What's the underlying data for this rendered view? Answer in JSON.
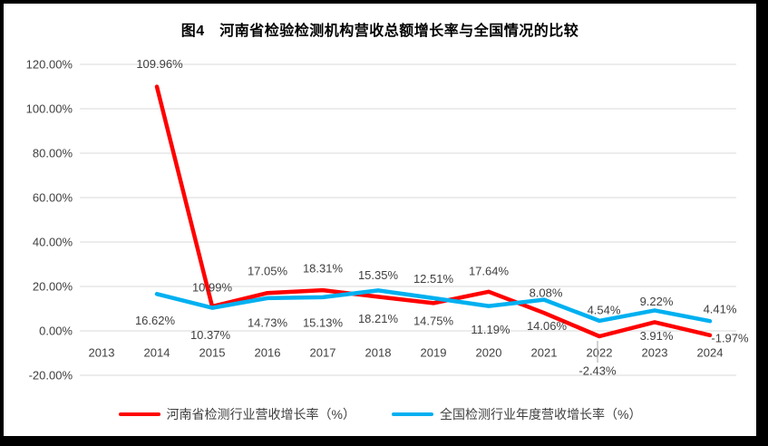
{
  "window": {
    "frame_color": "#000000",
    "background_color": "#ffffff",
    "gridline_color": "#d9d9d9",
    "axis_text_color": "#404040",
    "label_text_color": "#404040",
    "leader_line_color": "#a6a6a6"
  },
  "chart_data": {
    "type": "line",
    "title": "图4　河南省检验检测机构营收总额增长率与全国情况的比较",
    "categories": [
      "2013",
      "2014",
      "2015",
      "2016",
      "2017",
      "2018",
      "2019",
      "2020",
      "2021",
      "2022",
      "2023",
      "2024"
    ],
    "series": [
      {
        "name": "河南省检测行业营收增长率（%）",
        "color": "#ff0000",
        "values": [
          null,
          109.96,
          10.99,
          17.05,
          18.31,
          15.35,
          12.51,
          17.64,
          8.08,
          -2.43,
          3.91,
          -1.97
        ]
      },
      {
        "name": "全国检测行业年度营收增长率（%）",
        "color": "#00b0f0",
        "values": [
          null,
          16.62,
          10.37,
          14.73,
          15.13,
          18.21,
          14.75,
          11.19,
          14.06,
          4.54,
          9.22,
          4.41
        ]
      }
    ],
    "y_axis": {
      "ticks": [
        "120.00%",
        "100.00%",
        "80.00%",
        "60.00%",
        "40.00%",
        "20.00%",
        "0.00%",
        "-20.00%"
      ],
      "tick_values": [
        120,
        100,
        80,
        60,
        40,
        20,
        0,
        -20
      ],
      "min": -20,
      "max": 120,
      "step": 20
    },
    "grid": true,
    "data_labels": true,
    "label_format": "0.00%",
    "legend_position": "bottom"
  }
}
